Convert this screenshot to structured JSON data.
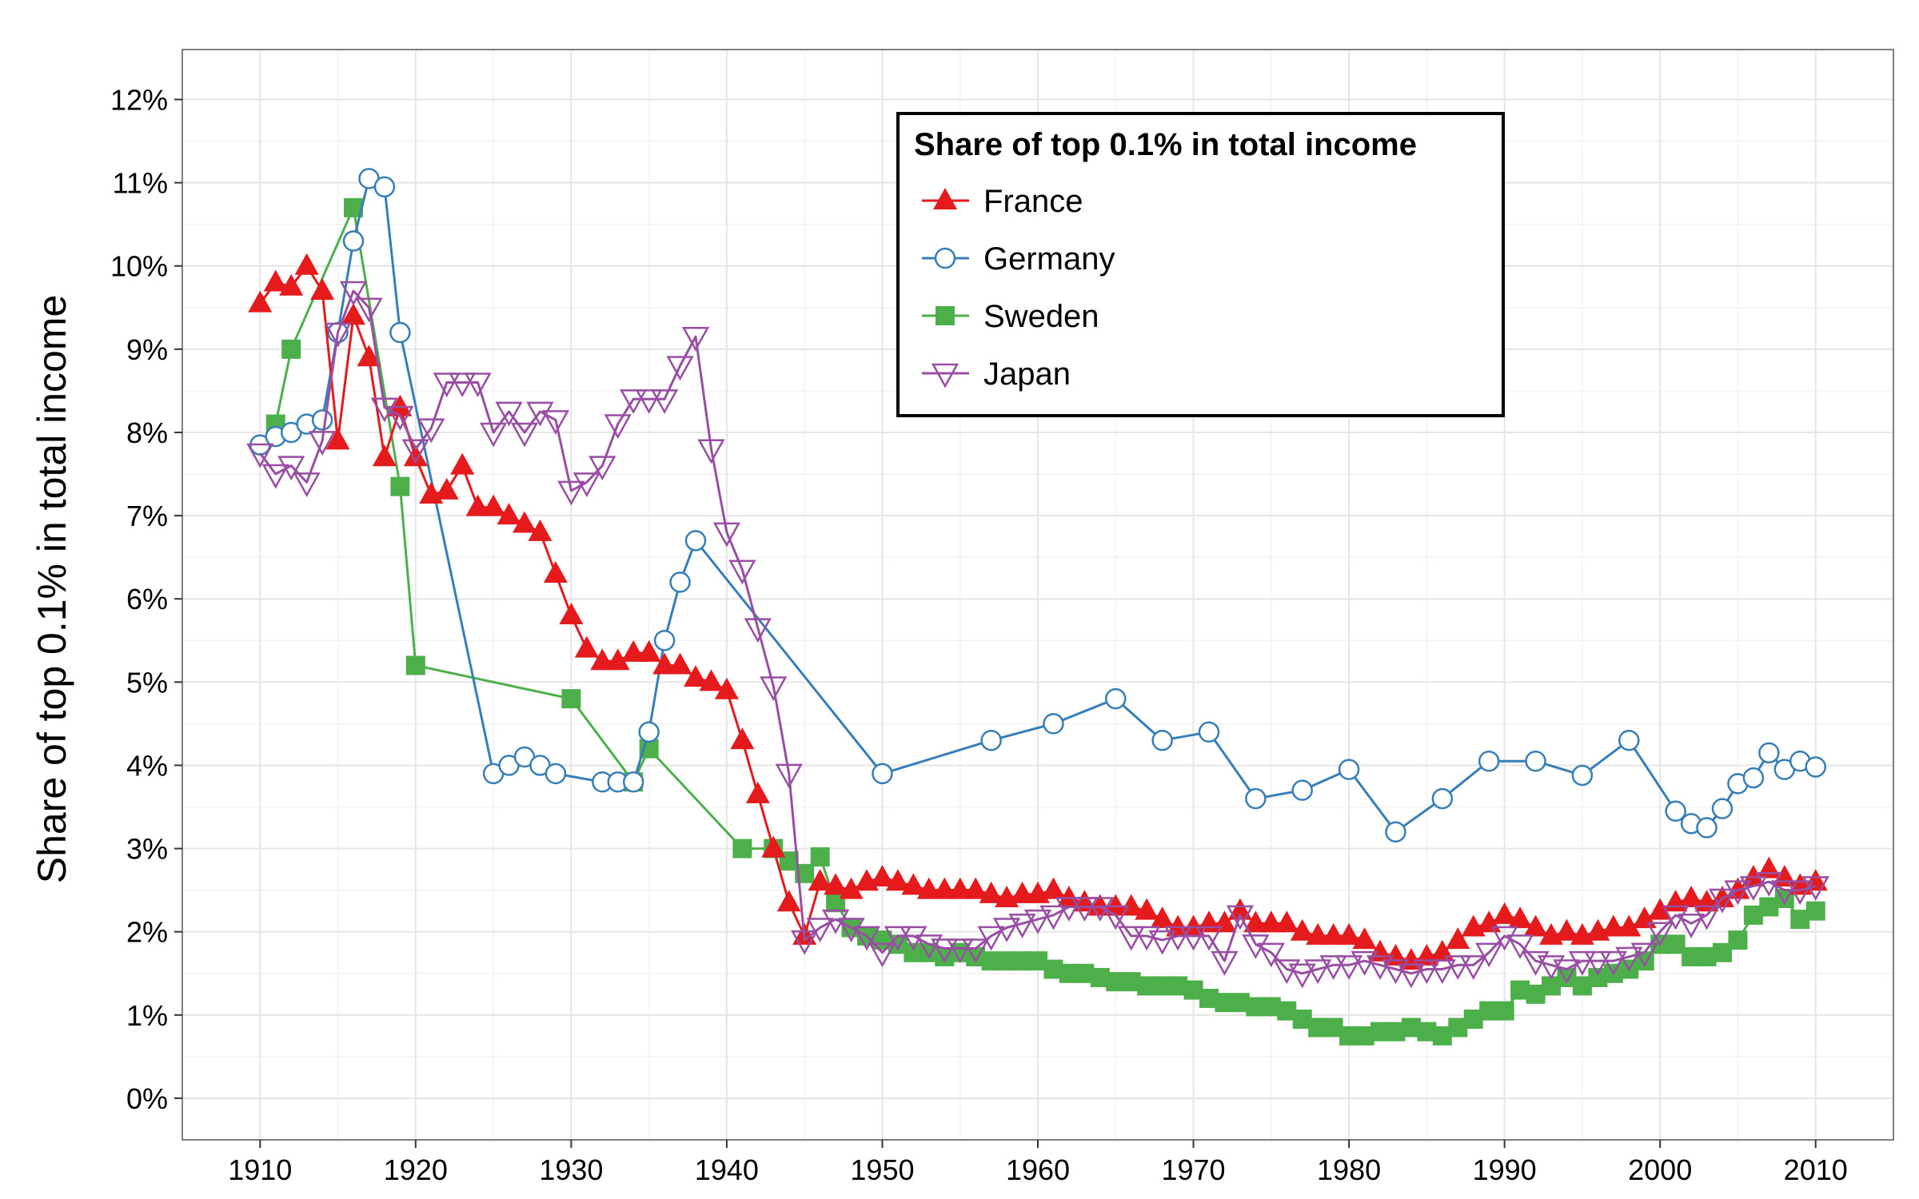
{
  "chart_data": {
    "type": "line",
    "title": "",
    "xlabel": "",
    "ylabel": "Share of top 0.1% in total income",
    "xlim": [
      1905,
      2015
    ],
    "ylim": [
      -0.5,
      12.6
    ],
    "x_ticks": [
      1910,
      1920,
      1930,
      1940,
      1950,
      1960,
      1970,
      1980,
      1990,
      2000,
      2010
    ],
    "x_tick_labels": [
      "1910",
      "1920",
      "1930",
      "1940",
      "1950",
      "1960",
      "1970",
      "1980",
      "1990",
      "2000",
      "2010"
    ],
    "y_ticks": [
      0,
      1,
      2,
      3,
      4,
      5,
      6,
      7,
      8,
      9,
      10,
      11,
      12
    ],
    "y_tick_labels": [
      "0%",
      "1%",
      "2%",
      "3%",
      "4%",
      "5%",
      "6%",
      "7%",
      "8%",
      "9%",
      "10%",
      "11%",
      "12%"
    ],
    "grid": true,
    "legend": {
      "title": "Share of top 0.1% in total income",
      "placement": "top-center"
    },
    "series": [
      {
        "name": "France",
        "color": "#e41a1c",
        "marker": "triangle-up",
        "x": [
          1910,
          1911,
          1912,
          1913,
          1914,
          1915,
          1916,
          1917,
          1918,
          1919,
          1920,
          1921,
          1922,
          1923,
          1924,
          1925,
          1926,
          1927,
          1928,
          1929,
          1930,
          1931,
          1932,
          1933,
          1934,
          1935,
          1936,
          1937,
          1938,
          1939,
          1940,
          1941,
          1942,
          1943,
          1944,
          1945,
          1946,
          1947,
          1948,
          1949,
          1950,
          1951,
          1952,
          1953,
          1954,
          1955,
          1956,
          1957,
          1958,
          1959,
          1960,
          1961,
          1962,
          1963,
          1964,
          1965,
          1966,
          1967,
          1968,
          1969,
          1970,
          1971,
          1972,
          1973,
          1974,
          1975,
          1976,
          1977,
          1978,
          1979,
          1980,
          1981,
          1982,
          1983,
          1984,
          1985,
          1986,
          1987,
          1988,
          1989,
          1990,
          1991,
          1992,
          1993,
          1994,
          1995,
          1996,
          1997,
          1998,
          1999,
          2000,
          2001,
          2002,
          2003,
          2004,
          2005,
          2006,
          2007,
          2008,
          2009,
          2010
        ],
        "y": [
          9.55,
          9.8,
          9.75,
          10.0,
          9.7,
          7.9,
          9.4,
          8.9,
          7.7,
          8.3,
          7.7,
          7.25,
          7.3,
          7.6,
          7.1,
          7.1,
          7.0,
          6.9,
          6.8,
          6.3,
          5.8,
          5.4,
          5.25,
          5.25,
          5.35,
          5.35,
          5.2,
          5.2,
          5.05,
          5.0,
          4.9,
          4.3,
          3.65,
          3.0,
          2.35,
          1.95,
          2.6,
          2.55,
          2.5,
          2.6,
          2.65,
          2.6,
          2.55,
          2.5,
          2.5,
          2.5,
          2.5,
          2.45,
          2.4,
          2.45,
          2.45,
          2.5,
          2.4,
          2.35,
          2.3,
          2.3,
          2.3,
          2.25,
          2.15,
          2.05,
          2.05,
          2.1,
          2.1,
          2.25,
          2.1,
          2.1,
          2.1,
          2.0,
          1.95,
          1.95,
          1.95,
          1.9,
          1.75,
          1.7,
          1.65,
          1.7,
          1.75,
          1.9,
          2.05,
          2.1,
          2.2,
          2.15,
          2.05,
          1.95,
          2.0,
          1.95,
          2.0,
          2.05,
          2.05,
          2.15,
          2.25,
          2.35,
          2.4,
          2.35,
          2.4,
          2.5,
          2.65,
          2.75,
          2.65,
          2.55,
          2.6
        ]
      },
      {
        "name": "Germany",
        "color": "#377eb8",
        "marker": "circle-open",
        "x": [
          1910,
          1911,
          1912,
          1913,
          1914,
          1915,
          1916,
          1917,
          1918,
          1919,
          1925,
          1926,
          1927,
          1928,
          1929,
          1932,
          1933,
          1934,
          1935,
          1936,
          1937,
          1938,
          1950,
          1957,
          1961,
          1965,
          1968,
          1971,
          1974,
          1977,
          1980,
          1983,
          1986,
          1989,
          1992,
          1995,
          1998,
          2001,
          2002,
          2003,
          2004,
          2005,
          2006,
          2007,
          2008,
          2009,
          2010
        ],
        "y": [
          7.85,
          7.95,
          8.0,
          8.1,
          8.15,
          9.2,
          10.3,
          11.05,
          10.95,
          9.2,
          3.9,
          4.0,
          4.1,
          4.0,
          3.9,
          3.8,
          3.8,
          3.8,
          4.4,
          5.5,
          6.2,
          6.7,
          3.9,
          4.3,
          4.5,
          4.8,
          4.3,
          4.4,
          3.6,
          3.7,
          3.95,
          3.2,
          3.6,
          4.05,
          4.05,
          3.88,
          4.3,
          3.45,
          3.3,
          3.25,
          3.48,
          3.78,
          3.85,
          4.15,
          3.95,
          4.05,
          3.98
        ]
      },
      {
        "name": "Sweden",
        "color": "#4daf4a",
        "marker": "square",
        "x": [
          1911,
          1912,
          1916,
          1919,
          1920,
          1930,
          1934,
          1935,
          1941,
          1943,
          1944,
          1945,
          1946,
          1947,
          1948,
          1949,
          1950,
          1951,
          1952,
          1953,
          1954,
          1955,
          1956,
          1957,
          1958,
          1959,
          1960,
          1961,
          1962,
          1963,
          1964,
          1965,
          1966,
          1967,
          1968,
          1969,
          1970,
          1971,
          1972,
          1973,
          1974,
          1975,
          1976,
          1977,
          1978,
          1979,
          1980,
          1981,
          1982,
          1983,
          1984,
          1985,
          1986,
          1987,
          1988,
          1989,
          1990,
          1991,
          1992,
          1993,
          1994,
          1995,
          1996,
          1997,
          1998,
          1999,
          2000,
          2001,
          2002,
          2003,
          2004,
          2005,
          2006,
          2007,
          2008,
          2009,
          2010
        ],
        "y": [
          8.1,
          9.0,
          10.7,
          7.35,
          5.2,
          4.8,
          3.8,
          4.2,
          3.0,
          3.0,
          2.85,
          2.7,
          2.9,
          2.35,
          2.05,
          1.95,
          1.9,
          1.85,
          1.75,
          1.75,
          1.7,
          1.75,
          1.7,
          1.65,
          1.65,
          1.65,
          1.65,
          1.55,
          1.5,
          1.5,
          1.45,
          1.4,
          1.4,
          1.35,
          1.35,
          1.35,
          1.3,
          1.2,
          1.15,
          1.15,
          1.1,
          1.1,
          1.05,
          0.95,
          0.85,
          0.85,
          0.75,
          0.75,
          0.8,
          0.8,
          0.85,
          0.8,
          0.75,
          0.85,
          0.95,
          1.05,
          1.05,
          1.3,
          1.25,
          1.35,
          1.45,
          1.35,
          1.45,
          1.5,
          1.55,
          1.65,
          1.85,
          1.85,
          1.7,
          1.7,
          1.75,
          1.9,
          2.2,
          2.3,
          2.4,
          2.15,
          2.25
        ]
      },
      {
        "name": "Japan",
        "color": "#984ea3",
        "marker": "triangle-down-open",
        "x": [
          1910,
          1911,
          1912,
          1913,
          1914,
          1915,
          1916,
          1917,
          1918,
          1919,
          1920,
          1921,
          1922,
          1923,
          1924,
          1925,
          1926,
          1927,
          1928,
          1929,
          1930,
          1931,
          1932,
          1933,
          1934,
          1935,
          1936,
          1937,
          1938,
          1939,
          1940,
          1941,
          1942,
          1943,
          1944,
          1945,
          1946,
          1947,
          1948,
          1949,
          1950,
          1951,
          1952,
          1953,
          1954,
          1955,
          1956,
          1957,
          1958,
          1959,
          1960,
          1961,
          1962,
          1963,
          1964,
          1965,
          1966,
          1967,
          1968,
          1969,
          1970,
          1971,
          1972,
          1973,
          1974,
          1975,
          1976,
          1977,
          1978,
          1979,
          1980,
          1981,
          1982,
          1983,
          1984,
          1985,
          1986,
          1987,
          1988,
          1989,
          1990,
          1991,
          1992,
          1993,
          1994,
          1995,
          1996,
          1997,
          1998,
          1999,
          2000,
          2001,
          2002,
          2003,
          2004,
          2005,
          2006,
          2007,
          2008,
          2009,
          2010
        ],
        "y": [
          7.75,
          7.5,
          7.6,
          7.4,
          7.9,
          9.2,
          9.7,
          9.5,
          8.3,
          8.2,
          7.8,
          8.05,
          8.6,
          8.6,
          8.6,
          8.0,
          8.25,
          8.0,
          8.25,
          8.15,
          7.3,
          7.4,
          7.6,
          8.1,
          8.4,
          8.4,
          8.4,
          8.8,
          9.15,
          7.8,
          6.8,
          6.35,
          5.65,
          4.95,
          3.9,
          1.9,
          2.05,
          2.15,
          2.05,
          1.95,
          1.75,
          1.95,
          1.95,
          1.85,
          1.8,
          1.8,
          1.8,
          1.95,
          2.05,
          2.1,
          2.15,
          2.2,
          2.3,
          2.3,
          2.3,
          2.2,
          1.95,
          1.95,
          1.9,
          1.95,
          1.95,
          1.95,
          1.65,
          2.2,
          1.85,
          1.75,
          1.55,
          1.5,
          1.55,
          1.6,
          1.6,
          1.65,
          1.6,
          1.55,
          1.5,
          1.55,
          1.55,
          1.6,
          1.6,
          1.75,
          1.95,
          1.85,
          1.65,
          1.6,
          1.55,
          1.65,
          1.65,
          1.65,
          1.7,
          1.75,
          2.0,
          2.2,
          2.1,
          2.2,
          2.4,
          2.5,
          2.55,
          2.6,
          2.5,
          2.5,
          2.55
        ]
      }
    ]
  }
}
